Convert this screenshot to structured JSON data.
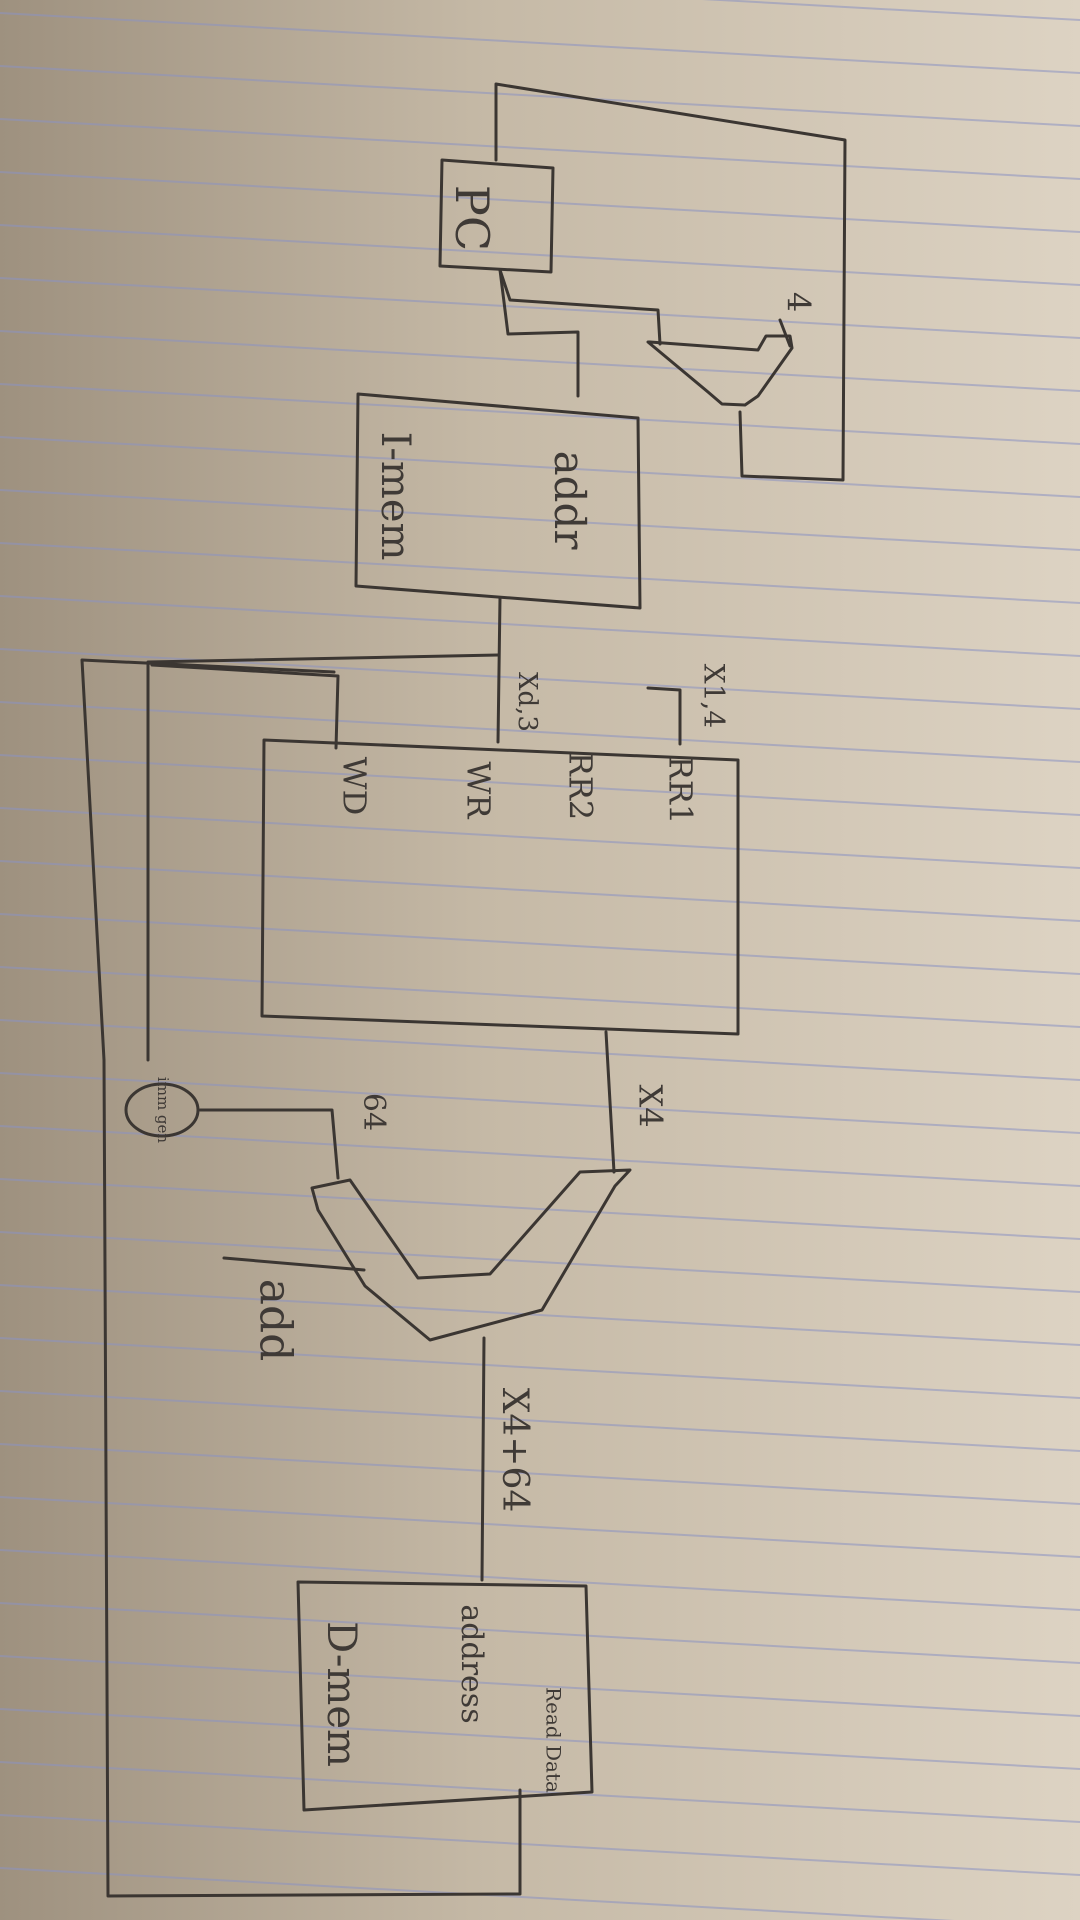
{
  "diagram": {
    "pc": {
      "label": "PC"
    },
    "pc_adder": {
      "constant": "4"
    },
    "imem": {
      "name": "I-mem",
      "port": "addr"
    },
    "regfile": {
      "ports": [
        "RR1",
        "RR2",
        "WR",
        "WD"
      ],
      "field_in1": "X1,4",
      "field_in2": "Xd,3",
      "output": "X4"
    },
    "alu": {
      "inputs": [
        "X4",
        "64"
      ],
      "op": "add",
      "result": "X4+64"
    },
    "imm_gen": {
      "label": "imm gen"
    },
    "dmem": {
      "name": "D-mem",
      "port_in": "address",
      "port_out": "Read Data"
    }
  }
}
